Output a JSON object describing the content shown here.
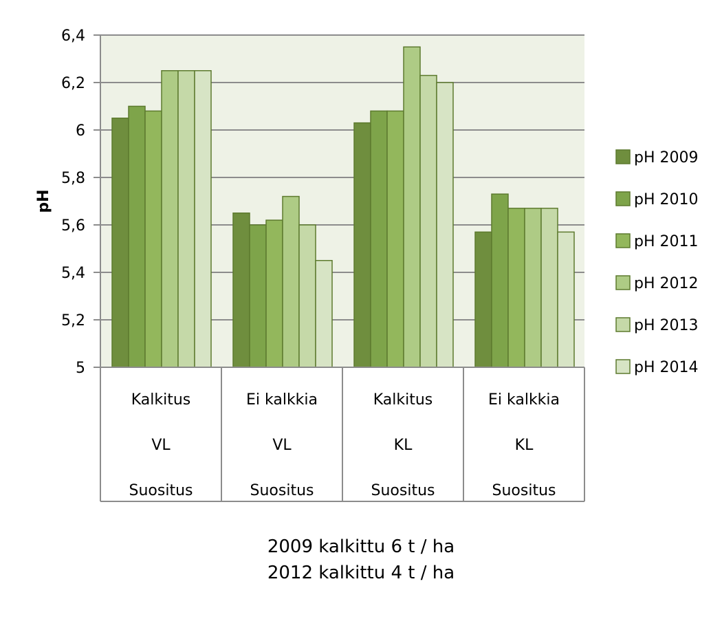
{
  "chart_data": {
    "type": "bar",
    "ylabel": "pH",
    "ylim": [
      5,
      6.4
    ],
    "yticks": [
      "5",
      "5,2",
      "5,4",
      "5,6",
      "5,8",
      "6",
      "6,2",
      "6,4"
    ],
    "ytick_values": [
      5,
      5.2,
      5.4,
      5.6,
      5.8,
      6,
      6.2,
      6.4
    ],
    "grid": true,
    "legend_position": "right",
    "categories": [
      [
        "Kalkitus",
        "VL",
        "Suositus"
      ],
      [
        "Ei kalkkia",
        "VL",
        "Suositus"
      ],
      [
        "Kalkitus",
        "KL",
        "Suositus"
      ],
      [
        "Ei kalkkia",
        "KL",
        "Suositus"
      ]
    ],
    "series": [
      {
        "name": "pH 2009",
        "color": "#6f8e3e",
        "values": [
          6.05,
          5.65,
          6.03,
          5.57
        ]
      },
      {
        "name": "pH 2010",
        "color": "#7ea44a",
        "values": [
          6.1,
          5.6,
          6.08,
          5.73
        ]
      },
      {
        "name": "pH 2011",
        "color": "#93b75c",
        "values": [
          6.08,
          5.62,
          6.08,
          5.67
        ]
      },
      {
        "name": "pH 2012",
        "color": "#aecb85",
        "values": [
          6.25,
          5.72,
          6.35,
          5.67
        ]
      },
      {
        "name": "pH 2013",
        "color": "#c5d9a8",
        "values": [
          6.25,
          5.6,
          6.23,
          5.67
        ]
      },
      {
        "name": "pH 2014",
        "color": "#d7e4c5",
        "values": [
          6.25,
          5.45,
          6.2,
          5.57
        ]
      }
    ]
  },
  "notes": [
    "2009 kalkittu 6 t / ha",
    "2012 kalkittu 4 t / ha"
  ]
}
